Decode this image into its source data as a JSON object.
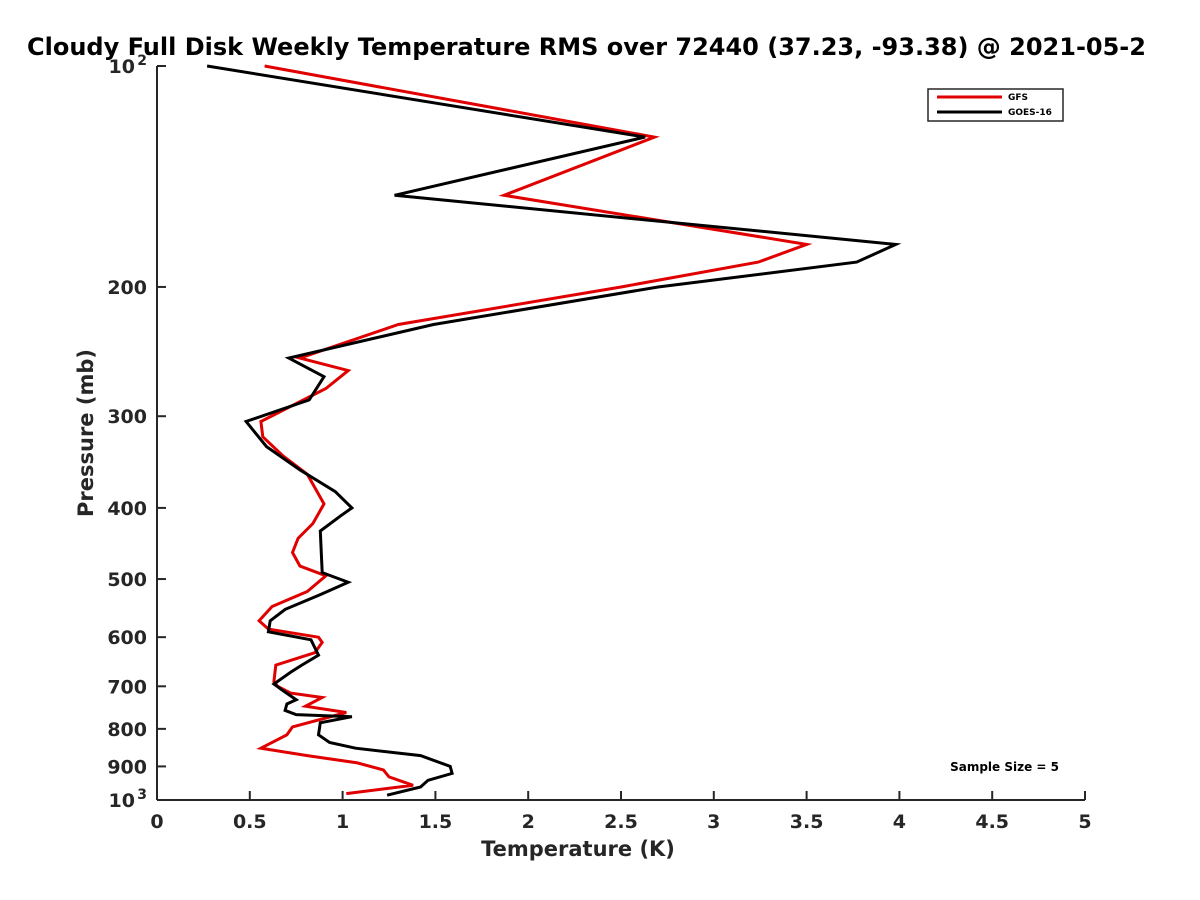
{
  "chart_data": {
    "type": "line",
    "title": "Cloudy Full Disk Weekly Temperature RMS over 72440 (37.23, -93.38) @ 2021-05-2",
    "xlabel": "Temperature (K)",
    "ylabel": "Pressure (mb)",
    "xlim": [
      0,
      5
    ],
    "ylim": [
      100,
      1000
    ],
    "y_scale": "log",
    "y_reversed": true,
    "grid": false,
    "legend_position": "top-right",
    "x_ticks": [
      {
        "v": 0,
        "label": "0"
      },
      {
        "v": 0.5,
        "label": "0.5"
      },
      {
        "v": 1,
        "label": "1"
      },
      {
        "v": 1.5,
        "label": "1.5"
      },
      {
        "v": 2,
        "label": "2"
      },
      {
        "v": 2.5,
        "label": "2.5"
      },
      {
        "v": 3,
        "label": "3"
      },
      {
        "v": 3.5,
        "label": "3.5"
      },
      {
        "v": 4,
        "label": "4"
      },
      {
        "v": 4.5,
        "label": "4.5"
      },
      {
        "v": 5,
        "label": "5"
      }
    ],
    "y_ticks": [
      {
        "v": 100,
        "label": "10",
        "sup": "2"
      },
      {
        "v": 200,
        "label": "200"
      },
      {
        "v": 300,
        "label": "300"
      },
      {
        "v": 400,
        "label": "400"
      },
      {
        "v": 500,
        "label": "500"
      },
      {
        "v": 600,
        "label": "600"
      },
      {
        "v": 700,
        "label": "700"
      },
      {
        "v": 800,
        "label": "800"
      },
      {
        "v": 900,
        "label": "900"
      },
      {
        "v": 1000,
        "label": "10",
        "sup": "3"
      }
    ],
    "series": [
      {
        "name": "GFS",
        "color": "#e00000",
        "points": [
          [
            0.58,
            100
          ],
          [
            2.68,
            125
          ],
          [
            1.87,
            150
          ],
          [
            3.5,
            175
          ],
          [
            3.24,
            185
          ],
          [
            2.5,
            200
          ],
          [
            1.3,
            225
          ],
          [
            0.77,
            250
          ],
          [
            1.03,
            260
          ],
          [
            0.91,
            275
          ],
          [
            0.56,
            305
          ],
          [
            0.57,
            320
          ],
          [
            0.68,
            340
          ],
          [
            0.81,
            360
          ],
          [
            0.9,
            395
          ],
          [
            0.84,
            420
          ],
          [
            0.76,
            440
          ],
          [
            0.73,
            460
          ],
          [
            0.77,
            480
          ],
          [
            0.91,
            495
          ],
          [
            0.81,
            520
          ],
          [
            0.62,
            545
          ],
          [
            0.55,
            570
          ],
          [
            0.6,
            585
          ],
          [
            0.87,
            600
          ],
          [
            0.89,
            610
          ],
          [
            0.85,
            630
          ],
          [
            0.64,
            655
          ],
          [
            0.63,
            690
          ],
          [
            0.65,
            700
          ],
          [
            0.72,
            715
          ],
          [
            0.89,
            725
          ],
          [
            0.8,
            745
          ],
          [
            1.02,
            760
          ],
          [
            0.73,
            795
          ],
          [
            0.7,
            815
          ],
          [
            0.56,
            850
          ],
          [
            0.81,
            870
          ],
          [
            1.08,
            890
          ],
          [
            1.22,
            910
          ],
          [
            1.25,
            930
          ],
          [
            1.38,
            955
          ],
          [
            1.02,
            980
          ]
        ]
      },
      {
        "name": "GOES-16",
        "color": "#000000",
        "points": [
          [
            0.27,
            100
          ],
          [
            2.63,
            125
          ],
          [
            1.28,
            150
          ],
          [
            3.98,
            175
          ],
          [
            3.77,
            185
          ],
          [
            2.7,
            200
          ],
          [
            1.49,
            225
          ],
          [
            0.71,
            250
          ],
          [
            0.9,
            265
          ],
          [
            0.82,
            285
          ],
          [
            0.48,
            305
          ],
          [
            0.59,
            330
          ],
          [
            0.77,
            355
          ],
          [
            0.96,
            380
          ],
          [
            1.05,
            400
          ],
          [
            0.99,
            410
          ],
          [
            0.88,
            430
          ],
          [
            0.89,
            490
          ],
          [
            1.03,
            505
          ],
          [
            0.88,
            525
          ],
          [
            0.69,
            550
          ],
          [
            0.61,
            570
          ],
          [
            0.6,
            590
          ],
          [
            0.83,
            605
          ],
          [
            0.85,
            620
          ],
          [
            0.87,
            635
          ],
          [
            0.78,
            655
          ],
          [
            0.72,
            670
          ],
          [
            0.63,
            695
          ],
          [
            0.68,
            710
          ],
          [
            0.75,
            730
          ],
          [
            0.7,
            740
          ],
          [
            0.69,
            755
          ],
          [
            0.75,
            765
          ],
          [
            1.05,
            770
          ],
          [
            0.88,
            785
          ],
          [
            0.87,
            815
          ],
          [
            0.93,
            835
          ],
          [
            1.07,
            850
          ],
          [
            1.42,
            870
          ],
          [
            1.58,
            900
          ],
          [
            1.59,
            920
          ],
          [
            1.46,
            940
          ],
          [
            1.42,
            960
          ],
          [
            1.24,
            985
          ]
        ]
      }
    ],
    "annotation": "Sample Size = 5"
  }
}
